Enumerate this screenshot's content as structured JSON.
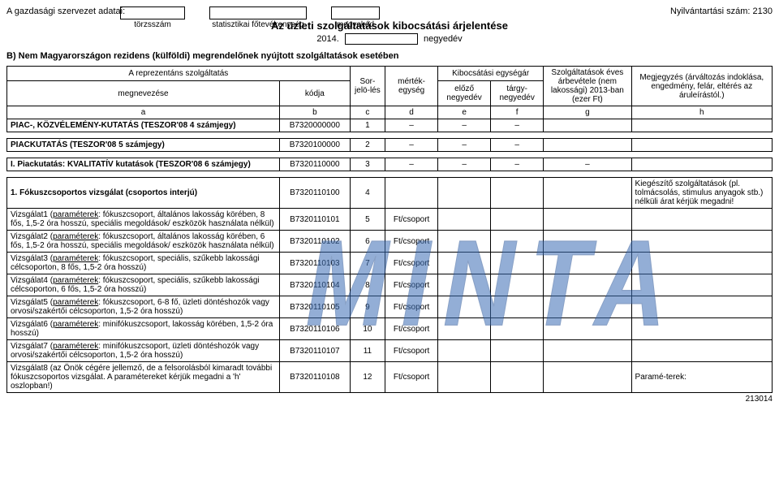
{
  "header": {
    "org_label": "A gazdasági szervezet adatai:",
    "box_labels": {
      "a": "törzsszám",
      "b": "statisztikai főtevékenység",
      "c": "megyekód"
    },
    "reg_num": "Nyilvántartási szám: 2130",
    "title": "Az üzleti szolgáltatások kibocsátási árjelentése",
    "year_prefix": "2014.",
    "year_suffix": "negyedév"
  },
  "section_b": "B) Nem Magyarországon rezidens (külföldi) megrendelőnek nyújtott szolgáltatások esetében",
  "table_headers": {
    "repr": "A reprezentáns szolgáltatás",
    "megn": "megnevezése",
    "kod": "kódja",
    "sor": "Sor-jelö-lés",
    "mertek": "mérték-egység",
    "kiboc": "Kibocsátási egységár",
    "elozo": "előző negyedév",
    "targy": "tárgy-negyedév",
    "szolg": "Szolgáltatások éves árbevétele (nem lakossági) 2013-ban (ezer Ft)",
    "megj": "Megjegyzés (árváltozás indoklása, engedmény, felár, eltérés az áruleírástól.)"
  },
  "letters": {
    "a": "a",
    "b": "b",
    "c": "c",
    "d": "d",
    "e": "e",
    "f": "f",
    "g": "g",
    "h": "h"
  },
  "rows": [
    {
      "name": "PIAC-, KÖZVÉLEMÉNY-KUTATÁS (TESZOR'08 4 számjegy)",
      "code": "B7320000000",
      "sor": "1",
      "unit": "–",
      "e": "–",
      "f": "–",
      "g": "",
      "bold": true,
      "spacer_after": true
    },
    {
      "name": "PIACKUTATÁS (TESZOR'08 5 számjegy)",
      "code": "B7320100000",
      "sor": "2",
      "unit": "–",
      "e": "–",
      "f": "–",
      "g": "",
      "bold": true,
      "spacer_after": true
    },
    {
      "name": "I. Piackutatás: KVALITATÍV kutatások (TESZOR'08 6 számjegy)",
      "code": "B7320110000",
      "sor": "3",
      "unit": "–",
      "e": "–",
      "f": "–",
      "g": "–",
      "bold": true,
      "spacer_after": true
    },
    {
      "name": "1. Fókuszcsoportos vizsgálat (csoportos interjú)",
      "code": "B7320110100",
      "sor": "4",
      "unit": "",
      "bold": true,
      "h": "Kiegészítő szolgáltatások (pl. tolmácsolás, stimulus anyagok stb.) nélküli árat kérjük megadni!"
    },
    {
      "name_pre": "Vizsgálat1 (",
      "name_u": "paraméterek",
      "name_post": ": fókuszcsoport, általános lakosság körében, 8 fős, 1,5-2 óra hosszú, speciális megoldások/ eszközök használata nélkül)",
      "code": "B7320110101",
      "sor": "5",
      "unit": "Ft/csoport"
    },
    {
      "name_pre": "Vizsgálat2 (",
      "name_u": "paraméterek",
      "name_post": ": fókuszcsoport, általános lakosság körében, 6 fős, 1,5-2 óra hosszú, speciális megoldások/ eszközök használata nélkül)",
      "code": "B7320110102",
      "sor": "6",
      "unit": "Ft/csoport"
    },
    {
      "name_pre": "Vizsgálat3 (",
      "name_u": "paraméterek",
      "name_post": ": fókuszcsoport, speciális, szűkebb lakossági célcsoporton, 8 fős, 1,5-2 óra hosszú)",
      "code": "B7320110103",
      "sor": "7",
      "unit": "Ft/csoport"
    },
    {
      "name_pre": "Vizsgálat4 (",
      "name_u": "paraméterek",
      "name_post": ": fókuszcsoport, speciális, szűkebb lakossági célcsoporton, 6 fős, 1,5-2 óra hosszú)",
      "code": "B7320110104",
      "sor": "8",
      "unit": "Ft/csoport"
    },
    {
      "name_pre": "Vizsgálat5 (",
      "name_u": "paraméterek",
      "name_post": ": fókuszcsoport, 6-8 fő, üzleti döntéshozók vagy orvosi/szakértői célcsoporton, 1,5-2 óra hosszú)",
      "code": "B7320110105",
      "sor": "9",
      "unit": "Ft/csoport"
    },
    {
      "name_pre": "Vizsgálat6 (",
      "name_u": "paraméterek",
      "name_post": ": minifókuszcsoport, lakosság körében, 1,5-2 óra hosszú)",
      "code": "B7320110106",
      "sor": "10",
      "unit": "Ft/csoport"
    },
    {
      "name_pre": "Vizsgálat7 (",
      "name_u": "paraméterek",
      "name_post": ": minifókuszcsoport, üzleti döntéshozók vagy orvosi/szakértői célcsoporton, 1,5-2 óra hosszú)",
      "code": "B7320110107",
      "sor": "11",
      "unit": "Ft/csoport"
    },
    {
      "name_pre": "Vizsgálat8 (az Önök cégére jellemző, de a felsorolásból kimaradt további fókuszcsoportos vizsgálat. A paramétereket kérjük megadni a 'h' oszlopban!)",
      "name_u": "",
      "name_post": "",
      "code": "B7320110108",
      "sor": "12",
      "unit": "Ft/csoport",
      "h": "Paramé-terek:"
    }
  ],
  "watermark": "MINTA",
  "footer": "213014"
}
